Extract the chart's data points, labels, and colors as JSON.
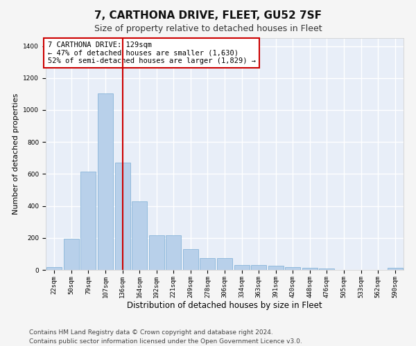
{
  "title": "7, CARTHONA DRIVE, FLEET, GU52 7SF",
  "subtitle": "Size of property relative to detached houses in Fleet",
  "xlabel": "Distribution of detached houses by size in Fleet",
  "ylabel": "Number of detached properties",
  "bar_color": "#b8d0ea",
  "bar_edge_color": "#7aadd4",
  "background_color": "#e8eef8",
  "grid_color": "#ffffff",
  "vline_color": "#cc0000",
  "vline_index": 4,
  "annotation_text": "7 CARTHONA DRIVE: 129sqm\n← 47% of detached houses are smaller (1,630)\n52% of semi-detached houses are larger (1,829) →",
  "annotation_box_edgecolor": "#cc0000",
  "categories": [
    "22sqm",
    "50sqm",
    "79sqm",
    "107sqm",
    "136sqm",
    "164sqm",
    "192sqm",
    "221sqm",
    "249sqm",
    "278sqm",
    "306sqm",
    "334sqm",
    "363sqm",
    "391sqm",
    "420sqm",
    "448sqm",
    "476sqm",
    "505sqm",
    "533sqm",
    "562sqm",
    "590sqm"
  ],
  "values": [
    18,
    196,
    615,
    1105,
    670,
    430,
    218,
    218,
    130,
    72,
    72,
    32,
    30,
    28,
    18,
    15,
    8,
    0,
    0,
    0,
    14
  ],
  "ylim": [
    0,
    1450
  ],
  "yticks": [
    0,
    200,
    400,
    600,
    800,
    1000,
    1200,
    1400
  ],
  "footer": "Contains HM Land Registry data © Crown copyright and database right 2024.\nContains public sector information licensed under the Open Government Licence v3.0.",
  "title_fontsize": 11,
  "subtitle_fontsize": 9,
  "xlabel_fontsize": 8.5,
  "ylabel_fontsize": 8,
  "tick_fontsize": 6.5,
  "footer_fontsize": 6.5,
  "ann_fontsize": 7.5,
  "fig_facecolor": "#f5f5f5"
}
